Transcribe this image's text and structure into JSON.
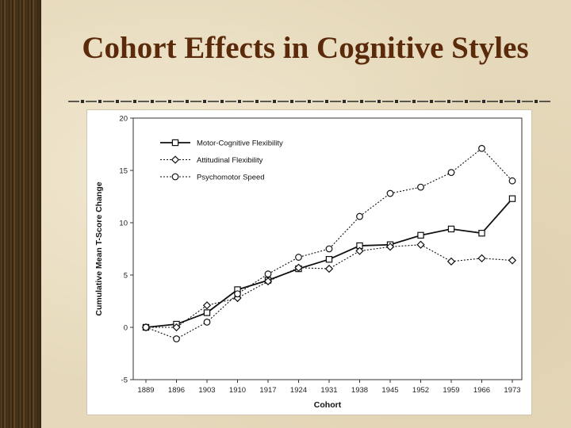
{
  "slide": {
    "title": "Cohort Effects in Cognitive Styles"
  },
  "chart_data": {
    "type": "line",
    "title": "",
    "xlabel": "Cohort",
    "ylabel": "Cumulative Mean T-Score Change",
    "categories": [
      "1889",
      "1896",
      "1903",
      "1910",
      "1917",
      "1924",
      "1931",
      "1938",
      "1945",
      "1952",
      "1959",
      "1966",
      "1973"
    ],
    "ylim": [
      -5,
      20
    ],
    "yticks": [
      "-5",
      "0",
      "5",
      "10",
      "15",
      "20"
    ],
    "grid": false,
    "legend_position": "top-left",
    "series": [
      {
        "name": "Motor-Cognitive Flexibility",
        "marker": "square",
        "line": "solid",
        "values": [
          0,
          0.3,
          1.4,
          3.6,
          4.5,
          5.6,
          6.5,
          7.8,
          7.9,
          8.8,
          9.4,
          9.0,
          12.3
        ]
      },
      {
        "name": "Attitudinal Flexibility",
        "marker": "diamond",
        "line": "dotted",
        "values": [
          0,
          0,
          2.1,
          2.8,
          4.4,
          5.7,
          5.6,
          7.3,
          7.7,
          7.9,
          6.3,
          6.6,
          6.4
        ]
      },
      {
        "name": "Psychomotor Speed",
        "marker": "circle",
        "line": "dotted",
        "values": [
          0,
          -1.1,
          0.5,
          3.2,
          5.1,
          6.7,
          7.5,
          10.6,
          12.8,
          13.4,
          14.8,
          17.1,
          14.0
        ]
      }
    ]
  }
}
